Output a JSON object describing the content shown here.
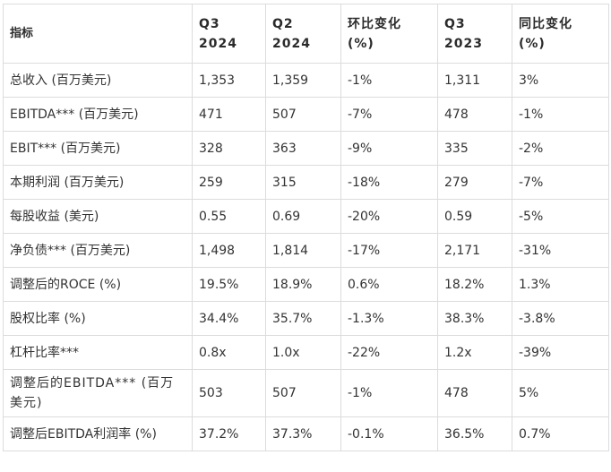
{
  "table": {
    "headers": [
      "指标",
      "Q3 2024",
      "Q2 2024",
      "环比变化 (%)",
      "Q3 2023",
      "同比变化 (%)"
    ],
    "rows": [
      [
        "总收入 (百万美元)",
        "1,353",
        "1,359",
        "-1%",
        "1,311",
        "3%"
      ],
      [
        "EBITDA*** (百万美元)",
        "471",
        "507",
        "-7%",
        "478",
        "-1%"
      ],
      [
        "EBIT*** (百万美元)",
        "328",
        "363",
        "-9%",
        "335",
        "-2%"
      ],
      [
        "本期利润 (百万美元)",
        "259",
        "315",
        "-18%",
        "279",
        "-7%"
      ],
      [
        "每股收益 (美元)",
        "0.55",
        "0.69",
        "-20%",
        "0.59",
        "-5%"
      ],
      [
        "净负债*** (百万美元)",
        "1,498",
        "1,814",
        "-17%",
        "2,171",
        "-31%"
      ],
      [
        "调整后的ROCE (%)",
        "19.5%",
        "18.9%",
        "0.6%",
        "18.2%",
        "1.3%"
      ],
      [
        "股权比率 (%)",
        "34.4%",
        "35.7%",
        "-1.3%",
        "38.3%",
        "-3.8%"
      ],
      [
        "杠杆比率***",
        "0.8x",
        "1.0x",
        "-22%",
        "1.2x",
        "-39%"
      ],
      [
        "调整后的EBITDA*** (百万美元)",
        "503",
        "507",
        "-1%",
        "478",
        "5%"
      ],
      [
        "调整后EBITDA利润率 (%)",
        "37.2%",
        "37.3%",
        "-0.1%",
        "36.5%",
        "0.7%"
      ]
    ]
  }
}
